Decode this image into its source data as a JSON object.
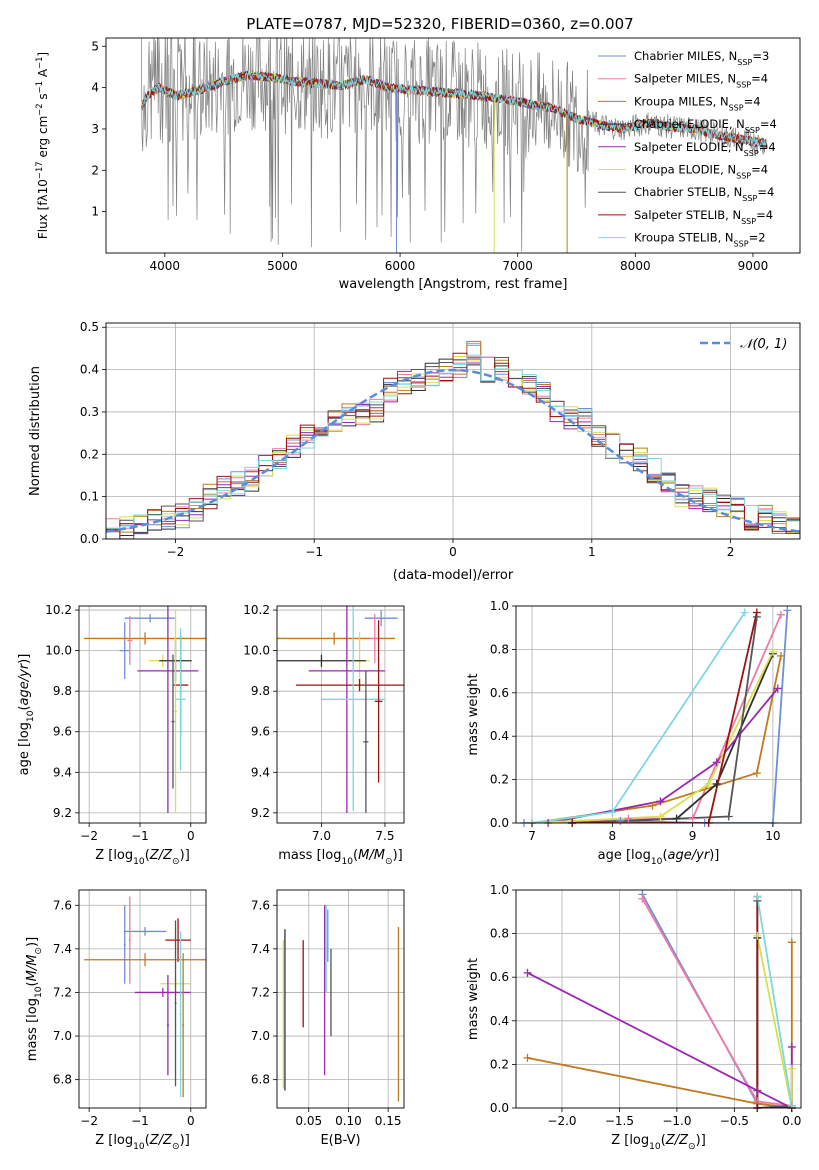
{
  "title": "PLATE=0787, MJD=52320, FIBERID=0360, z=0.007",
  "colors": {
    "Chabrier MILES": "#6f8fd8",
    "Salpeter MILES": "#f07aa8",
    "Kroupa MILES": "#c07a1e",
    "Chabrier ELODIE": "#303030",
    "Salpeter ELODIE": "#9b28b0",
    "Kroupa ELODIE": "#d8e050",
    "Chabrier STELIB": "#555555",
    "Salpeter STELIB": "#a01010",
    "Kroupa STELIB": "#7dd8e0",
    "observed": "#808080",
    "normal": "#5b8cd6",
    "grid": "#b0b0b0"
  },
  "chart_data": [
    {
      "type": "line",
      "panel": "spectrum",
      "xlabel": "wavelength [Angstrom, rest frame]",
      "ylabel": "Flux [f_λ10^-17 erg cm^-2 s^-1 A^-1]",
      "xlim": [
        3500,
        9400
      ],
      "ylim": [
        0,
        5.2
      ],
      "xticks": [
        4000,
        5000,
        6000,
        7000,
        8000,
        9000
      ],
      "yticks": [
        1,
        2,
        3,
        4,
        5
      ],
      "legend_position": "top-right",
      "continuum": {
        "x": [
          3800,
          3850,
          3950,
          4100,
          4300,
          4500,
          4700,
          4900,
          5100,
          5300,
          5500,
          5700,
          5900,
          6100,
          6300,
          6500,
          6700,
          6900,
          7100,
          7300,
          7500,
          7700,
          7900,
          8100,
          8300,
          8500,
          8700,
          8900,
          9100
        ],
        "y": [
          3.5,
          3.8,
          4.0,
          3.8,
          3.95,
          4.15,
          4.3,
          4.25,
          4.15,
          4.1,
          4.05,
          4.2,
          4.0,
          3.95,
          3.9,
          3.85,
          3.8,
          3.7,
          3.6,
          3.5,
          3.25,
          3.1,
          3.0,
          3.15,
          3.05,
          3.0,
          2.85,
          2.75,
          2.65
        ]
      },
      "series": [
        {
          "name": "Chabrier MILES",
          "nssp": "3"
        },
        {
          "name": "Salpeter MILES",
          "nssp": "4"
        },
        {
          "name": "Kroupa MILES",
          "nssp": "4"
        },
        {
          "name": "Chabrier ELODIE",
          "nssp": "4"
        },
        {
          "name": "Salpeter ELODIE",
          "nssp": "4"
        },
        {
          "name": "Kroupa ELODIE",
          "nssp": "4"
        },
        {
          "name": "Chabrier STELIB",
          "nssp": "4"
        },
        {
          "name": "Salpeter STELIB",
          "nssp": "4"
        },
        {
          "name": "Kroupa STELIB",
          "nssp": "2"
        }
      ]
    },
    {
      "type": "histogram",
      "panel": "residuals",
      "xlabel": "(data-model)/error",
      "ylabel": "Normed distribution",
      "xlim": [
        -2.5,
        2.5
      ],
      "ylim": [
        0,
        0.51
      ],
      "xticks": [
        -2,
        -1,
        0,
        1,
        2
      ],
      "yticks": [
        0.0,
        0.1,
        0.2,
        0.3,
        0.4,
        0.5
      ],
      "grid": true,
      "legend": "N(0,1)",
      "bin_edges": [
        -2.5,
        -2.4,
        -2.3,
        -2.2,
        -2.1,
        -2.0,
        -1.9,
        -1.8,
        -1.7,
        -1.6,
        -1.5,
        -1.4,
        -1.3,
        -1.2,
        -1.1,
        -1.0,
        -0.9,
        -0.8,
        -0.7,
        -0.6,
        -0.5,
        -0.4,
        -0.3,
        -0.2,
        -0.1,
        0.0,
        0.1,
        0.2,
        0.3,
        0.4,
        0.5,
        0.6,
        0.7,
        0.8,
        0.9,
        1.0,
        1.1,
        1.2,
        1.3,
        1.4,
        1.5,
        1.6,
        1.7,
        1.8,
        1.9,
        2.0,
        2.1,
        2.2,
        2.3,
        2.4,
        2.5
      ],
      "base_values": [
        0.02,
        0.025,
        0.03,
        0.04,
        0.05,
        0.055,
        0.07,
        0.1,
        0.12,
        0.13,
        0.14,
        0.17,
        0.19,
        0.22,
        0.24,
        0.26,
        0.28,
        0.29,
        0.3,
        0.3,
        0.35,
        0.37,
        0.38,
        0.39,
        0.4,
        0.41,
        0.44,
        0.4,
        0.4,
        0.38,
        0.36,
        0.35,
        0.3,
        0.29,
        0.28,
        0.24,
        0.22,
        0.2,
        0.19,
        0.16,
        0.13,
        0.1,
        0.1,
        0.09,
        0.08,
        0.07,
        0.05,
        0.05,
        0.04,
        0.03
      ],
      "series_names": [
        "Chabrier MILES",
        "Salpeter MILES",
        "Kroupa MILES",
        "Chabrier ELODIE",
        "Salpeter ELODIE",
        "Kroupa ELODIE",
        "Chabrier STELIB",
        "Salpeter STELIB",
        "Kroupa STELIB"
      ]
    },
    {
      "type": "errorbar",
      "panel": "age-vs-Z",
      "xlabel": "Z [log10(Z/Z⊙)]",
      "ylabel": "age [log10(age/yr)]",
      "xlim": [
        -2.2,
        0.3
      ],
      "ylim": [
        9.15,
        10.22
      ],
      "xticks": [
        -2,
        -1,
        0
      ],
      "yticks": [
        9.2,
        9.4,
        9.6,
        9.8,
        10.0,
        10.2
      ],
      "grid": true,
      "points": [
        {
          "series": "Chabrier MILES",
          "x": -0.8,
          "xerr": 0.5,
          "y": 10.16,
          "yerr": 0.02
        },
        {
          "series": "Chabrier MILES",
          "x": -1.3,
          "xerr": 0.1,
          "y": 10.0,
          "yerr": 0.14
        },
        {
          "series": "Kroupa MILES",
          "x": -0.9,
          "xerr": 1.2,
          "y": 10.06,
          "yerr": 0.03
        },
        {
          "series": "Salpeter MILES",
          "x": -1.2,
          "xerr": 0.05,
          "y": 10.05,
          "yerr": 0.12
        },
        {
          "series": "Kroupa ELODIE",
          "x": -0.55,
          "xerr": 0.28,
          "y": 9.95,
          "yerr": 0.03
        },
        {
          "series": "Chabrier ELODIE",
          "x": -0.3,
          "xerr": 0.32,
          "y": 9.95,
          "yerr": 0.1
        },
        {
          "series": "Salpeter ELODIE",
          "x": -0.45,
          "xerr": 0.6,
          "y": 9.9,
          "yerr": 0.7
        },
        {
          "series": "Salpeter STELIB",
          "x": -0.2,
          "xerr": 0.15,
          "y": 9.83,
          "yerr": 0.25
        },
        {
          "series": "Kroupa STELIB",
          "x": -0.2,
          "xerr": 0.1,
          "y": 9.76,
          "yerr": 0.35
        },
        {
          "series": "Kroupa ELODIE",
          "x": -0.3,
          "xerr": 0.03,
          "y": 9.7,
          "yerr": 0.5
        },
        {
          "series": "Chabrier STELIB",
          "x": -0.35,
          "xerr": 0.03,
          "y": 9.65,
          "yerr": 0.33
        }
      ]
    },
    {
      "type": "errorbar",
      "panel": "age-vs-mass",
      "xlabel": "mass [log10(M/M⊙)]",
      "xlim": [
        6.65,
        7.65
      ],
      "ylim": [
        9.15,
        10.22
      ],
      "xticks": [
        7.0,
        7.5
      ],
      "yticks": [
        9.2,
        9.4,
        9.6,
        9.8,
        10.0,
        10.2
      ],
      "grid": true,
      "points": [
        {
          "series": "Chabrier MILES",
          "x": 7.47,
          "xerr": 0.13,
          "y": 10.16,
          "yerr": 0.04
        },
        {
          "series": "Kroupa MILES",
          "x": 7.1,
          "xerr": 0.48,
          "y": 10.06,
          "yerr": 0.03
        },
        {
          "series": "Salpeter MILES",
          "x": 7.42,
          "xerr": 0.04,
          "y": 10.06,
          "yerr": 0.12
        },
        {
          "series": "Kroupa ELODIE",
          "x": 7.3,
          "xerr": 0.08,
          "y": 9.95,
          "yerr": 0.14
        },
        {
          "series": "Chabrier ELODIE",
          "x": 7.0,
          "xerr": 0.35,
          "y": 9.95,
          "yerr": 0.03
        },
        {
          "series": "Salpeter ELODIE",
          "x": 7.2,
          "xerr": 0.3,
          "y": 9.9,
          "yerr": 0.7
        },
        {
          "series": "Salpeter STELIB",
          "x": 7.3,
          "xerr": 0.5,
          "y": 9.83,
          "yerr": 0.03
        },
        {
          "series": "Kroupa STELIB",
          "x": 7.25,
          "xerr": 0.25,
          "y": 9.76,
          "yerr": 0.55
        },
        {
          "series": "Chabrier STELIB",
          "x": 7.35,
          "xerr": 0.02,
          "y": 9.55,
          "yerr": 0.35
        },
        {
          "series": "Salpeter STELIB",
          "x": 7.45,
          "xerr": 0.03,
          "y": 9.75,
          "yerr": 0.4
        }
      ]
    },
    {
      "type": "line",
      "panel": "weight-vs-age",
      "xlabel": "age [log10(age/yr)]",
      "ylabel": "mass weight",
      "xlim": [
        6.8,
        10.35
      ],
      "ylim": [
        0,
        1.0
      ],
      "xticks": [
        7,
        8,
        9,
        10
      ],
      "yticks": [
        0.0,
        0.2,
        0.4,
        0.6,
        0.8,
        1.0
      ],
      "grid": true,
      "series": [
        {
          "name": "Chabrier MILES",
          "x": [
            6.9,
            8.1,
            9.15,
            10.0,
            10.18
          ],
          "y": [
            0.0,
            0.01,
            0.0,
            0.0,
            0.98
          ]
        },
        {
          "name": "Salpeter MILES",
          "x": [
            7.0,
            8.2,
            9.0,
            10.1
          ],
          "y": [
            0.0,
            0.02,
            0.02,
            0.96
          ]
        },
        {
          "name": "Kroupa MILES",
          "x": [
            7.0,
            8.5,
            9.8,
            10.1
          ],
          "y": [
            0.0,
            0.08,
            0.23,
            0.77
          ]
        },
        {
          "name": "Chabrier ELODIE",
          "x": [
            7.5,
            8.8,
            9.3,
            10.0
          ],
          "y": [
            0.0,
            0.02,
            0.18,
            0.78
          ]
        },
        {
          "name": "Salpeter ELODIE",
          "x": [
            7.2,
            8.6,
            9.3,
            10.06
          ],
          "y": [
            0.0,
            0.1,
            0.28,
            0.62
          ]
        },
        {
          "name": "Kroupa ELODIE",
          "x": [
            7.0,
            8.6,
            9.2,
            10.0
          ],
          "y": [
            0.0,
            0.03,
            0.18,
            0.79
          ]
        },
        {
          "name": "Chabrier STELIB",
          "x": [
            7.5,
            9.45,
            9.8
          ],
          "y": [
            0.0,
            0.03,
            0.95
          ]
        },
        {
          "name": "Salpeter STELIB",
          "x": [
            7.5,
            9.2,
            9.8
          ],
          "y": [
            0.0,
            0.0,
            0.97
          ]
        },
        {
          "name": "Kroupa STELIB",
          "x": [
            7.0,
            8.0,
            9.65
          ],
          "y": [
            0.0,
            0.05,
            0.97
          ]
        }
      ]
    },
    {
      "type": "errorbar",
      "panel": "mass-vs-Z",
      "xlabel": "Z [log10(Z/Z⊙)]",
      "ylabel": "mass [log10(M/M⊙)]",
      "xlim": [
        -2.2,
        0.3
      ],
      "ylim": [
        6.67,
        7.67
      ],
      "xticks": [
        -2,
        -1,
        0
      ],
      "yticks": [
        6.8,
        7.0,
        7.2,
        7.4,
        7.6
      ],
      "grid": true,
      "points": [
        {
          "series": "Chabrier MILES",
          "x": -0.9,
          "xerr": 0.42,
          "y": 7.48,
          "yerr": 0.02
        },
        {
          "series": "Chabrier MILES",
          "x": -1.3,
          "xerr": 0.02,
          "y": 7.42,
          "yerr": 0.18
        },
        {
          "series": "Salpeter MILES",
          "x": -1.2,
          "xerr": 0.02,
          "y": 7.44,
          "yerr": 0.2
        },
        {
          "series": "Salpeter STELIB",
          "x": -0.25,
          "xerr": 0.25,
          "y": 7.44,
          "yerr": 0.1
        },
        {
          "series": "Kroupa MILES",
          "x": -0.9,
          "xerr": 1.2,
          "y": 7.35,
          "yerr": 0.03
        },
        {
          "series": "Kroupa ELODIE",
          "x": -0.3,
          "xerr": 0.3,
          "y": 7.24,
          "yerr": 0.02
        },
        {
          "series": "Salpeter ELODIE",
          "x": -0.55,
          "xerr": 0.55,
          "y": 7.2,
          "yerr": 0.02
        },
        {
          "series": "Salpeter ELODIE",
          "x": -0.45,
          "xerr": 0.02,
          "y": 7.05,
          "yerr": 0.23
        },
        {
          "series": "Chabrier STELIB",
          "x": -0.3,
          "xerr": 0.02,
          "y": 7.15,
          "yerr": 0.38
        },
        {
          "series": "Kroupa STELIB",
          "x": -0.2,
          "xerr": 0.02,
          "y": 7.1,
          "yerr": 0.38
        },
        {
          "series": "Kroupa MILES",
          "x": -0.15,
          "xerr": 0.02,
          "y": 7.05,
          "yerr": 0.33
        }
      ]
    },
    {
      "type": "errorbar",
      "panel": "mass-vs-EBV",
      "xlabel": "E(B-V)",
      "xlim": [
        0.01,
        0.17
      ],
      "ylim": [
        6.67,
        7.67
      ],
      "xticks": [
        0.05,
        0.1,
        0.15
      ],
      "yticks": [
        6.8,
        7.0,
        7.2,
        7.4,
        7.6
      ],
      "grid": true,
      "points": [
        {
          "series": "Chabrier ELODIE",
          "x": 0.02,
          "xerr": 0.0,
          "y": 7.12,
          "yerr": 0.37
        },
        {
          "series": "Kroupa ELODIE",
          "x": 0.018,
          "xerr": 0.0,
          "y": 7.1,
          "yerr": 0.34
        },
        {
          "series": "Salpeter STELIB",
          "x": 0.043,
          "xerr": 0.0,
          "y": 7.24,
          "yerr": 0.2
        },
        {
          "series": "Salpeter ELODIE",
          "x": 0.07,
          "xerr": 0.0,
          "y": 7.21,
          "yerr": 0.39
        },
        {
          "series": "Kroupa STELIB",
          "x": 0.072,
          "xerr": 0.0,
          "y": 7.4,
          "yerr": 0.2
        },
        {
          "series": "Chabrier MILES",
          "x": 0.074,
          "xerr": 0.0,
          "y": 7.46,
          "yerr": 0.12
        },
        {
          "series": "Chabrier STELIB",
          "x": 0.078,
          "xerr": 0.0,
          "y": 7.2,
          "yerr": 0.2
        },
        {
          "series": "Kroupa MILES",
          "x": 0.163,
          "xerr": 0.0,
          "y": 7.1,
          "yerr": 0.4
        }
      ]
    },
    {
      "type": "line",
      "panel": "weight-vs-Z",
      "xlabel": "Z [log10(Z/Z⊙)]",
      "ylabel": "mass weight",
      "xlim": [
        -2.4,
        0.08
      ],
      "ylim": [
        0,
        1.0
      ],
      "xticks": [
        -2.0,
        -1.5,
        -1.0,
        -0.5,
        0.0
      ],
      "yticks": [
        0.0,
        0.2,
        0.4,
        0.6,
        0.8,
        1.0
      ],
      "grid": true,
      "series": [
        {
          "name": "Chabrier MILES",
          "x": [
            -1.3,
            -0.3,
            0.0
          ],
          "y": [
            0.98,
            0.02,
            0.0
          ]
        },
        {
          "name": "Salpeter MILES",
          "x": [
            -1.3,
            -0.3,
            0.0
          ],
          "y": [
            0.96,
            0.03,
            0.01
          ]
        },
        {
          "name": "Kroupa MILES",
          "x": [
            -2.3,
            -0.3,
            0.0,
            0.0
          ],
          "y": [
            0.23,
            0.02,
            0.0,
            0.76
          ]
        },
        {
          "name": "Chabrier ELODIE",
          "x": [
            -0.3,
            -0.3,
            0.0
          ],
          "y": [
            0.78,
            0.0,
            0.0
          ]
        },
        {
          "name": "Salpeter ELODIE",
          "x": [
            -2.3,
            -0.3,
            0.0,
            0.0
          ],
          "y": [
            0.62,
            0.08,
            0.0,
            0.28
          ]
        },
        {
          "name": "Kroupa ELODIE",
          "x": [
            -0.3,
            0.0,
            0.0
          ],
          "y": [
            0.79,
            0.0,
            0.18
          ]
        },
        {
          "name": "Chabrier STELIB",
          "x": [
            -0.3,
            -0.3,
            0.0
          ],
          "y": [
            0.95,
            0.0,
            0.01
          ]
        },
        {
          "name": "Salpeter STELIB",
          "x": [
            -0.3,
            -0.3,
            0.0
          ],
          "y": [
            0.97,
            0.0,
            0.0
          ]
        },
        {
          "name": "Kroupa STELIB",
          "x": [
            -0.3,
            0.0
          ],
          "y": [
            0.97,
            0.01
          ]
        }
      ]
    }
  ]
}
